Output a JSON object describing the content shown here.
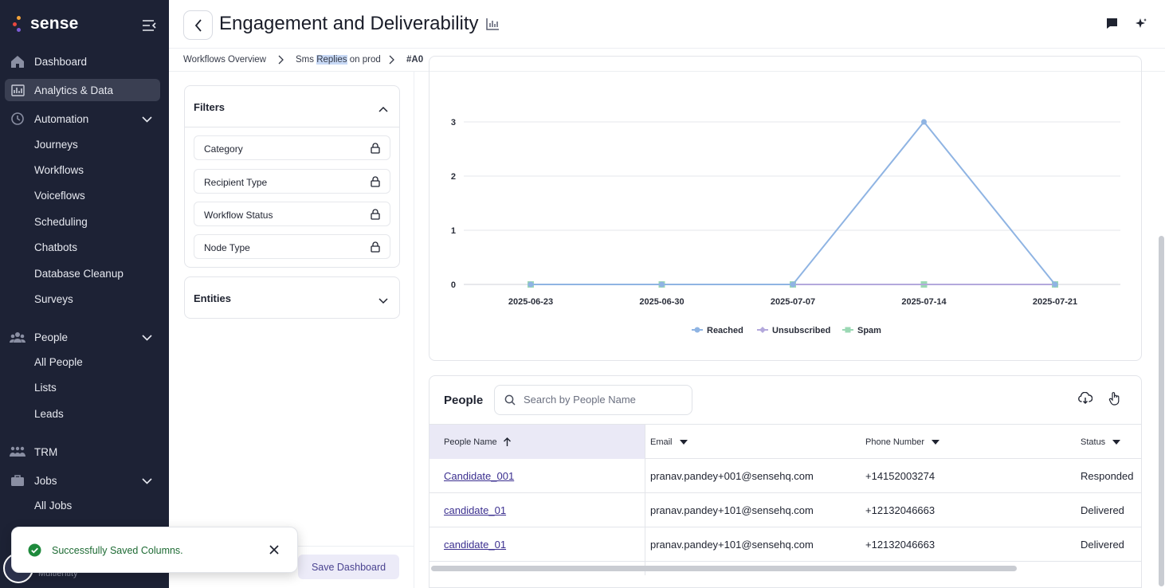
{
  "app": {
    "brand": "sense"
  },
  "sidebar": {
    "items": [
      {
        "label": "Dashboard",
        "icon": "home-icon"
      },
      {
        "label": "Analytics & Data",
        "icon": "analytics-icon"
      },
      {
        "label": "Automation",
        "icon": "automation-icon"
      },
      {
        "label": "People",
        "icon": "people-icon"
      },
      {
        "label": "TRM",
        "icon": "trm-icon"
      },
      {
        "label": "Jobs",
        "icon": "briefcase-icon"
      }
    ],
    "automation_children": [
      "Journeys",
      "Workflows",
      "Voiceflows",
      "Scheduling",
      "Chatbots",
      "Database Cleanup",
      "Surveys"
    ],
    "people_children": [
      "All People",
      "Lists",
      "Leads"
    ],
    "jobs_children": [
      "All Jobs"
    ],
    "bottom_partial_label": "Multientity"
  },
  "header": {
    "title": "Engagement and Deliverability"
  },
  "breadcrumb": {
    "item1": "Workflows Overview",
    "item2_a": "Sms ",
    "item2_b": "Replies",
    "item2_c": " on prod",
    "item3": "#A0"
  },
  "filters": {
    "title": "Filters",
    "items": [
      "Category",
      "Recipient Type",
      "Workflow Status",
      "Node Type"
    ],
    "entities_title": "Entities",
    "save_label": "Save Dashboard"
  },
  "chart_data": {
    "type": "line",
    "categories": [
      "2025-06-23",
      "2025-06-30",
      "2025-07-07",
      "2025-07-14",
      "2025-07-21"
    ],
    "series": [
      {
        "name": "Reached",
        "values": [
          0,
          0,
          0,
          3,
          0
        ],
        "color": "#8fb4e3"
      },
      {
        "name": "Unsubscribed",
        "values": [
          0,
          0,
          0,
          0,
          0
        ],
        "color": "#b3a8dc"
      },
      {
        "name": "Spam",
        "values": [
          0,
          0,
          0,
          0,
          0
        ],
        "color": "#9bd8b4"
      }
    ],
    "y_ticks": [
      "0",
      "1",
      "2",
      "3"
    ],
    "ylim": [
      0,
      3
    ],
    "grid": true,
    "legend": "bottom"
  },
  "people": {
    "title": "People",
    "search_placeholder": "Search by People Name",
    "columns": [
      "People Name",
      "Email",
      "Phone Number",
      "Status"
    ],
    "rows": [
      {
        "name": "Candidate_001",
        "email": "pranav.pandey+001@sensehq.com",
        "phone": "+14152003274",
        "status": "Responded"
      },
      {
        "name": "candidate_01",
        "email": "pranav.pandey+101@sensehq.com",
        "phone": "+12132046663",
        "status": "Delivered"
      },
      {
        "name": "candidate_01",
        "email": "pranav.pandey+101@sensehq.com",
        "phone": "+12132046663",
        "status": "Delivered"
      }
    ]
  },
  "toast": {
    "message": "Successfully Saved Columns."
  }
}
